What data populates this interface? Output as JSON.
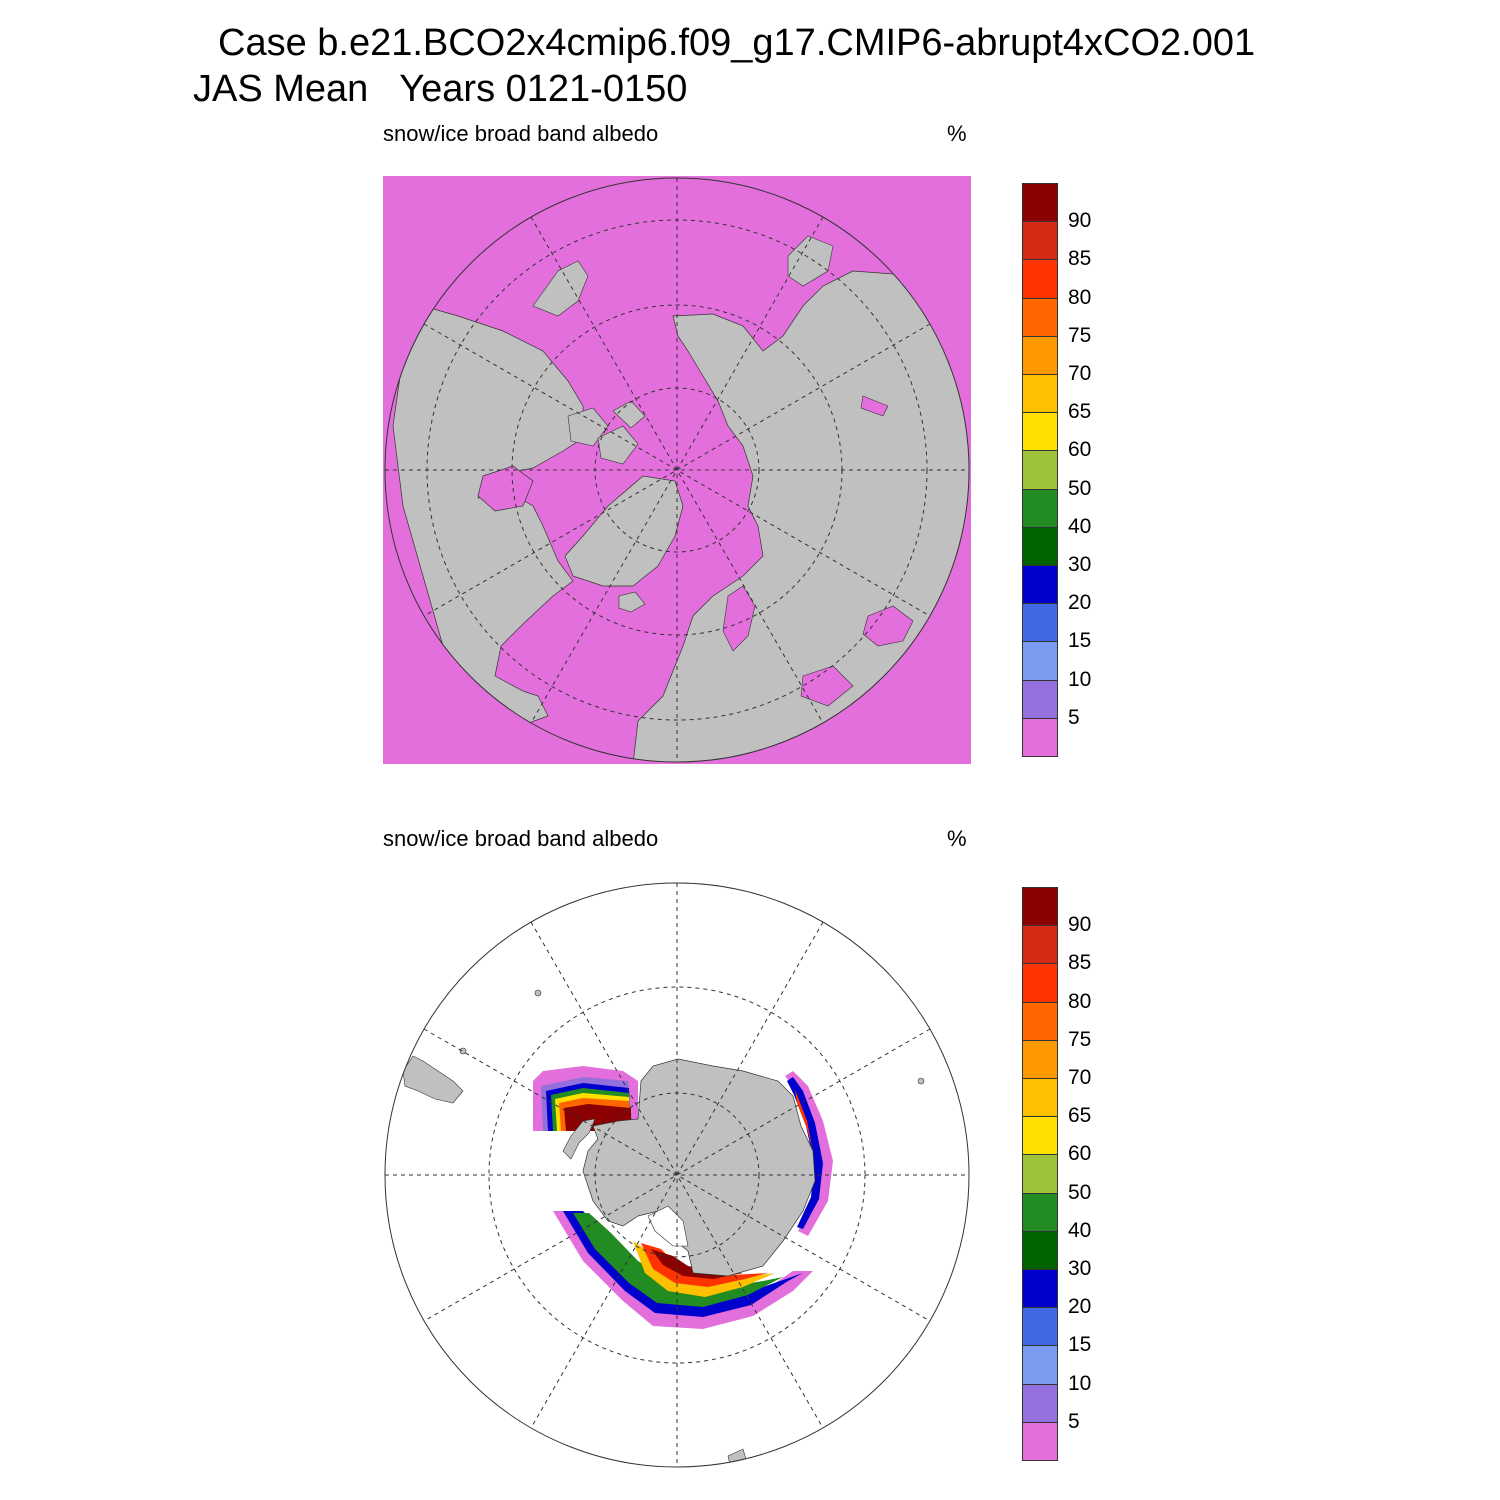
{
  "title_line1": "Case b.e21.BCO2x4cmip6.f09_g17.CMIP6-abrupt4xCO2.001",
  "title_line2": "JAS Mean   Years 0121-0150",
  "panels": [
    {
      "id": "north",
      "label_left": "snow/ice broad band albedo",
      "label_right": "%"
    },
    {
      "id": "south",
      "label_left": "snow/ice broad band albedo",
      "label_right": "%"
    }
  ],
  "colorbar": {
    "labels": [
      "90",
      "85",
      "80",
      "75",
      "70",
      "65",
      "60",
      "50",
      "40",
      "30",
      "20",
      "15",
      "10",
      "5"
    ],
    "colors": [
      "#8b0000",
      "#d42a14",
      "#ff3300",
      "#ff6600",
      "#ff9900",
      "#ffc000",
      "#ffe000",
      "#9dc33c",
      "#228b22",
      "#006400",
      "#0000cd",
      "#4169e1",
      "#7b9df0",
      "#9370db",
      "#e36fdc"
    ]
  },
  "colors": {
    "land": "#c0c0c0",
    "fill_low": "#e36fdc",
    "ocean_none": "#ffffff"
  }
}
